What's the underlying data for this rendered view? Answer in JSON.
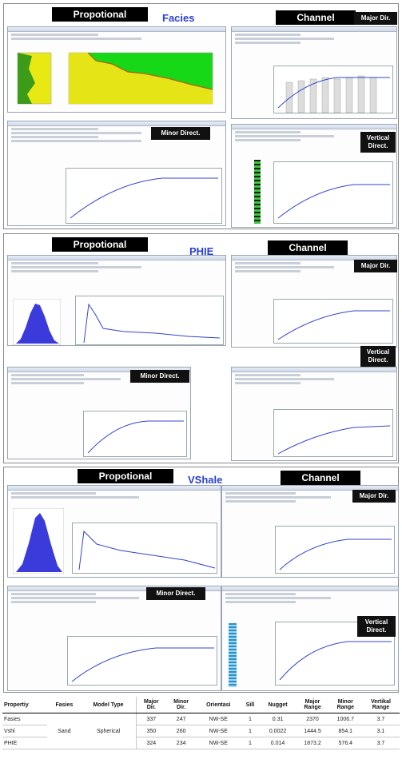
{
  "sections": [
    {
      "title": "Facies",
      "left_tag": "Propotional",
      "right_tag": "Channel",
      "labels": {
        "major": "Major Dir.",
        "minor": "Minor Direct.",
        "vertical": "Vertical\nDirect."
      }
    },
    {
      "title": "PHIE",
      "left_tag": "Propotional",
      "right_tag": "Channel",
      "labels": {
        "major": "Major Dir.",
        "minor": "Minor Direct.",
        "vertical": "Vertical\nDirect."
      }
    },
    {
      "title": "VShale",
      "left_tag": "Propotional",
      "right_tag": "Channel",
      "labels": {
        "major": "Major Dir.",
        "minor": "Minor Direct.",
        "vertical": "Vertical\nDirect."
      }
    }
  ],
  "table": {
    "headers": [
      "Propertiy",
      "Fasies",
      "Model Type",
      "Major\nDir.",
      "Minor\nDir.",
      "Orientasi",
      "Sill",
      "Nugget",
      "Major\nRange",
      "Minor\nRange",
      "Vertikal\nRange"
    ],
    "shared": {
      "fasies": "Sand",
      "model_type": "Spherical"
    },
    "rows": [
      {
        "property": "Fasies",
        "major_dir": "337",
        "minor_dir": "247",
        "orientasi": "NW-SE",
        "sill": "1",
        "nugget": "0.31",
        "major_range": "2370",
        "minor_range": "1006.7",
        "vertikal_range": "3.7"
      },
      {
        "property": "Vshl",
        "major_dir": "350",
        "minor_dir": "260",
        "orientasi": "NW-SE",
        "sill": "1",
        "nugget": "0.0022",
        "major_range": "1444.5",
        "minor_range": "854.1",
        "vertikal_range": "3.1"
      },
      {
        "property": "PHIE",
        "major_dir": "324",
        "minor_dir": "234",
        "orientasi": "NW-SE",
        "sill": "1",
        "nugget": "0.014",
        "major_range": "1873.2",
        "minor_range": "576.4",
        "vertikal_range": "3.7"
      }
    ]
  }
}
